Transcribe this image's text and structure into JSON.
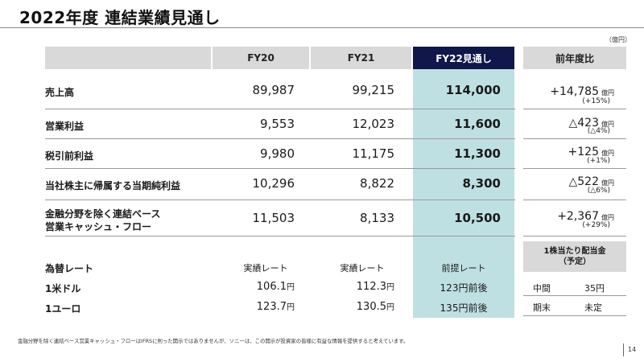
{
  "title": "2022年度 連結業績見通し",
  "unit": "（億円）",
  "headers": {
    "fy20": "FY20",
    "fy21": "FY21",
    "fy22": "FY22見通し",
    "yoy": "前年度比"
  },
  "rows": [
    {
      "label": "売上高",
      "fy20": "89,987",
      "fy21": "99,215",
      "fy22": "114,000",
      "yoy": "+14,785",
      "yoy_unit": "億円",
      "yoy_pct": "(+15%)"
    },
    {
      "label": "営業利益",
      "fy20": "9,553",
      "fy21": "12,023",
      "fy22": "11,600",
      "yoy": "△423",
      "yoy_unit": "億円",
      "yoy_pct": "(△4%)"
    },
    {
      "label": "税引前利益",
      "fy20": "9,980",
      "fy21": "11,175",
      "fy22": "11,300",
      "yoy": "+125",
      "yoy_unit": "億円",
      "yoy_pct": "(+1%)"
    },
    {
      "label": "当社株主に帰属する当期純利益",
      "fy20": "10,296",
      "fy21": "8,822",
      "fy22": "8,300",
      "yoy": "△522",
      "yoy_unit": "億円",
      "yoy_pct": "(△6%)"
    },
    {
      "label_line1": "金融分野を除く連結ベース",
      "label_line2": "営業キャッシュ・フロー",
      "fy20": "11,503",
      "fy21": "8,133",
      "fy22": "10,500",
      "yoy": "+2,367",
      "yoy_unit": "億円",
      "yoy_pct": "(+29%)"
    }
  ],
  "rates": {
    "label": "為替レート",
    "fy20_label": "実績レート",
    "fy21_label": "実績レート",
    "fy22_label": "前提レート",
    "unit_yen": "円",
    "items": [
      {
        "label": "1米ドル",
        "fy20": "106.1",
        "fy21": "112.3",
        "fy22": "123円前後"
      },
      {
        "label": "1ユーロ",
        "fy20": "123.7",
        "fy21": "130.5",
        "fy22": "135円前後"
      }
    ]
  },
  "dividend": {
    "title_line1": "1株当たり配当金",
    "title_line2": "（予定）",
    "items": [
      {
        "label": "中間",
        "value": "35円"
      },
      {
        "label": "期末",
        "value": "未定"
      }
    ]
  },
  "footnote": "金融分野を除く連結ベース営業キャッシュ・フローはIFRSに則った開示ではありませんが、ソニーは、この開示が投資家の皆様に有益な情報を提供すると考えています。",
  "page_number": "14",
  "colors": {
    "navy": "#10174a",
    "teal": "#bfe0e3",
    "header_grey": "#d9d9d9"
  }
}
